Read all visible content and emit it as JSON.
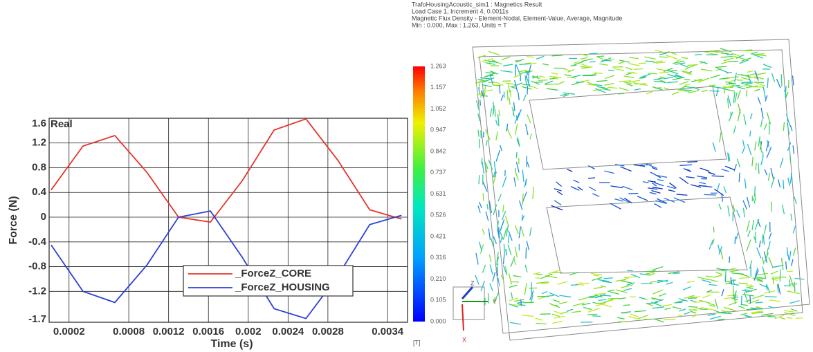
{
  "chart_data": {
    "type": "line",
    "title": "Real",
    "x_label": "Time (s)",
    "y_label": "Force (N)",
    "x": [
      2e-05,
      0.00034,
      0.00066,
      0.00098,
      0.0013,
      0.00162,
      0.00194,
      0.00226,
      0.00258,
      0.0029,
      0.00322,
      0.00354
    ],
    "series": [
      {
        "name": "_ForceZ_CORE",
        "color": "#e8322a",
        "values": [
          0.44,
          1.15,
          1.32,
          0.73,
          0.0,
          -0.08,
          0.59,
          1.41,
          1.59,
          0.92,
          0.12,
          -0.03
        ]
      },
      {
        "name": "_ForceZ_HOUSING",
        "color": "#2c3ed8",
        "values": [
          -0.45,
          -1.2,
          -1.38,
          -0.78,
          0.0,
          0.1,
          -0.65,
          -1.48,
          -1.64,
          -0.95,
          -0.12,
          0.03
        ]
      }
    ],
    "xlim": [
      0,
      0.0036
    ],
    "xticks": [
      0.0002,
      0.0008,
      0.0012,
      0.0016,
      0.002,
      0.0024,
      0.0028,
      0.0034
    ],
    "ylim": [
      -1.7,
      1.6
    ],
    "yticks": [
      1.6,
      1.2,
      0.8,
      0.4,
      0,
      -0.4,
      -0.8,
      -1.2,
      -1.7
    ],
    "grid": true
  },
  "result_view": {
    "header": [
      "TrafoHousingAcoustic_sim1 : Magnetics Result",
      "Load Case 1, Increment 4, 0.0011s",
      "Magnetic Flux Density - Element-Nodal, Element-Value, Average, Magnitude",
      "Min : 0.000, Max : 1.263, Units = T"
    ],
    "colorbar": {
      "ticks": [
        "1.263",
        "1.157",
        "1.052",
        "0.947",
        "0.842",
        "0.737",
        "0.631",
        "0.526",
        "0.421",
        "0.316",
        "0.210",
        "0.105",
        "0.000"
      ],
      "unit": "[T]"
    },
    "triad": {
      "z": "Z",
      "y": "Y",
      "x": "X"
    }
  }
}
